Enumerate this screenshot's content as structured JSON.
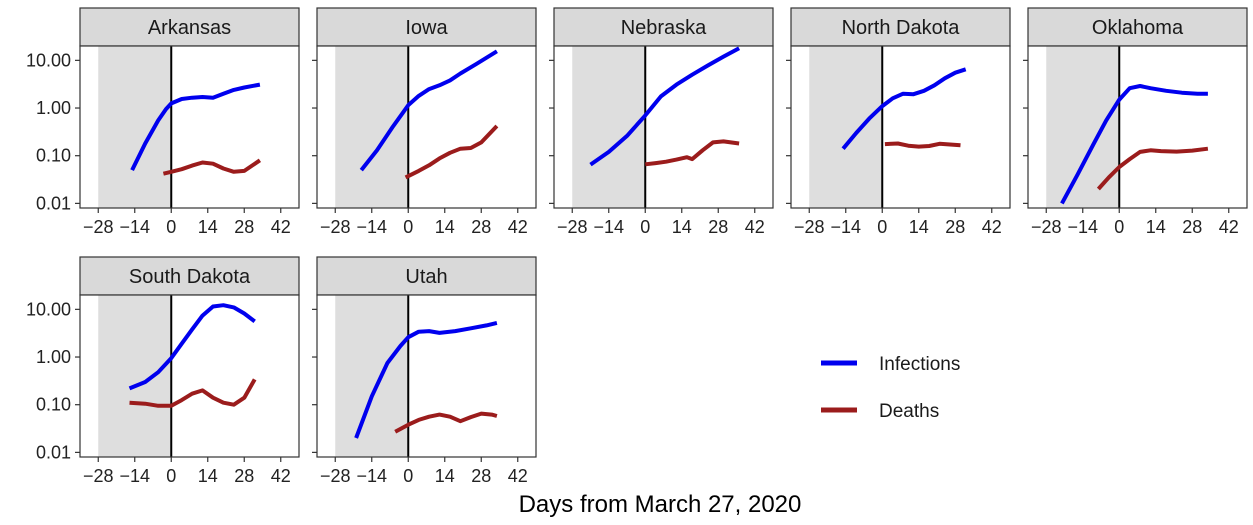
{
  "chart_data": {
    "type": "line",
    "xlabel": "Days from March 27, 2020",
    "ylabel": "",
    "y_scale": "log10",
    "xlim": [
      -35,
      49
    ],
    "ylim": [
      0.008,
      20
    ],
    "x_ticks": [
      -28,
      -14,
      0,
      14,
      28,
      42
    ],
    "x_tick_labels": [
      "−28",
      "−14",
      "0",
      "14",
      "28",
      "42"
    ],
    "y_ticks": [
      0.01,
      0.1,
      1,
      10
    ],
    "y_tick_labels": [
      "0.01",
      "0.10",
      "1.00",
      "10.00"
    ],
    "shaded_region": [
      -28,
      0
    ],
    "reference_line_x": 0,
    "grid": false,
    "legend": {
      "placement": "bottom-right",
      "entries": [
        {
          "name": "Infections",
          "color": "#0000ee"
        },
        {
          "name": "Deaths",
          "color": "#9b1c1c"
        }
      ]
    },
    "panels": [
      {
        "title": "Arkansas",
        "series": [
          {
            "name": "Infections",
            "color": "#0000ee",
            "x": [
              -15,
              -10,
              -5,
              -2,
              0,
              4,
              8,
              12,
              16,
              20,
              24,
              28,
              34
            ],
            "y": [
              0.05,
              0.18,
              0.55,
              0.95,
              1.25,
              1.55,
              1.65,
              1.7,
              1.65,
              2.0,
              2.4,
              2.7,
              3.1
            ]
          },
          {
            "name": "Deaths",
            "color": "#9b1c1c",
            "x": [
              -3,
              0,
              4,
              8,
              12,
              16,
              20,
              24,
              28,
              34
            ],
            "y": [
              0.042,
              0.046,
              0.052,
              0.062,
              0.072,
              0.068,
              0.054,
              0.046,
              0.048,
              0.08
            ]
          }
        ]
      },
      {
        "title": "Iowa",
        "series": [
          {
            "name": "Infections",
            "color": "#0000ee",
            "x": [
              -18,
              -12,
              -6,
              -2,
              0,
              4,
              8,
              12,
              16,
              20,
              26,
              34
            ],
            "y": [
              0.05,
              0.13,
              0.4,
              0.8,
              1.15,
              1.8,
              2.5,
              3.0,
              3.8,
              5.3,
              8.3,
              15.5
            ]
          },
          {
            "name": "Deaths",
            "color": "#9b1c1c",
            "x": [
              -1,
              4,
              8,
              12,
              16,
              20,
              24,
              28,
              34
            ],
            "y": [
              0.035,
              0.048,
              0.063,
              0.088,
              0.115,
              0.14,
              0.145,
              0.19,
              0.42
            ]
          }
        ]
      },
      {
        "title": "Nebraska",
        "series": [
          {
            "name": "Infections",
            "color": "#0000ee",
            "x": [
              -21,
              -14,
              -7,
              0,
              6,
              12,
              18,
              24,
              30,
              36
            ],
            "y": [
              0.065,
              0.12,
              0.26,
              0.7,
              1.75,
              3.1,
              5.0,
              7.8,
              12.0,
              18.0
            ]
          },
          {
            "name": "Deaths",
            "color": "#9b1c1c",
            "x": [
              0,
              4,
              8,
              12,
              16,
              18,
              22,
              26,
              30,
              36
            ],
            "y": [
              0.066,
              0.07,
              0.075,
              0.083,
              0.093,
              0.085,
              0.13,
              0.19,
              0.2,
              0.18
            ]
          }
        ]
      },
      {
        "title": "North Dakota",
        "series": [
          {
            "name": "Infections",
            "color": "#0000ee",
            "x": [
              -15,
              -10,
              -5,
              0,
              4,
              8,
              12,
              16,
              20,
              24,
              28,
              32
            ],
            "y": [
              0.14,
              0.3,
              0.6,
              1.1,
              1.6,
              2.0,
              1.95,
              2.3,
              3.0,
              4.2,
              5.5,
              6.5
            ]
          },
          {
            "name": "Deaths",
            "color": "#9b1c1c",
            "x": [
              1,
              6,
              10,
              14,
              18,
              22,
              26,
              30
            ],
            "y": [
              0.175,
              0.18,
              0.162,
              0.155,
              0.16,
              0.178,
              0.172,
              0.165
            ]
          }
        ]
      },
      {
        "title": "Oklahoma",
        "series": [
          {
            "name": "Infections",
            "color": "#0000ee",
            "x": [
              -22,
              -16,
              -10,
              -5,
              0,
              4,
              8,
              12,
              18,
              24,
              30,
              34
            ],
            "y": [
              0.01,
              0.04,
              0.17,
              0.55,
              1.5,
              2.6,
              2.9,
              2.6,
              2.3,
              2.1,
              2.0,
              2.0
            ]
          },
          {
            "name": "Deaths",
            "color": "#9b1c1c",
            "x": [
              -8,
              -4,
              0,
              4,
              8,
              12,
              16,
              22,
              28,
              34
            ],
            "y": [
              0.02,
              0.035,
              0.058,
              0.085,
              0.12,
              0.13,
              0.125,
              0.122,
              0.128,
              0.14
            ]
          }
        ]
      },
      {
        "title": "South Dakota",
        "series": [
          {
            "name": "Infections",
            "color": "#0000ee",
            "x": [
              -16,
              -10,
              -5,
              0,
              4,
              8,
              12,
              16,
              20,
              24,
              28,
              32
            ],
            "y": [
              0.22,
              0.3,
              0.48,
              0.95,
              1.9,
              3.8,
              7.4,
              11.5,
              12.2,
              11.0,
              8.2,
              5.6
            ]
          },
          {
            "name": "Deaths",
            "color": "#9b1c1c",
            "x": [
              -16,
              -10,
              -5,
              0,
              4,
              8,
              12,
              16,
              20,
              24,
              28,
              32
            ],
            "y": [
              0.11,
              0.105,
              0.095,
              0.095,
              0.125,
              0.17,
              0.2,
              0.14,
              0.11,
              0.1,
              0.14,
              0.34
            ]
          }
        ]
      },
      {
        "title": "Utah",
        "series": [
          {
            "name": "Infections",
            "color": "#0000ee",
            "x": [
              -20,
              -14,
              -8,
              -3,
              0,
              4,
              8,
              12,
              18,
              24,
              30,
              34
            ],
            "y": [
              0.02,
              0.15,
              0.75,
              1.7,
              2.6,
              3.4,
              3.5,
              3.2,
              3.5,
              4.0,
              4.6,
              5.2
            ]
          },
          {
            "name": "Deaths",
            "color": "#9b1c1c",
            "x": [
              -5,
              0,
              4,
              8,
              12,
              16,
              20,
              24,
              28,
              32,
              34
            ],
            "y": [
              0.027,
              0.038,
              0.048,
              0.056,
              0.062,
              0.056,
              0.045,
              0.055,
              0.065,
              0.062,
              0.058
            ]
          }
        ]
      }
    ]
  }
}
